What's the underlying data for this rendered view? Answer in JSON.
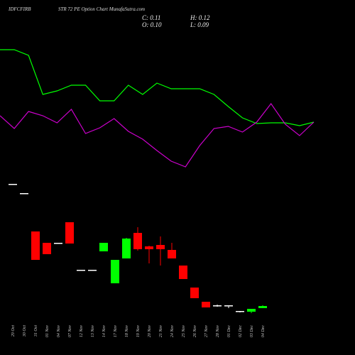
{
  "chart_data": [
    {
      "type": "line",
      "ylim": [
        0,
        2.5
      ],
      "series": [
        {
          "color": "#00ff00",
          "values": [
            1.8,
            1.8,
            1.72,
            1.17,
            1.22,
            1.3,
            1.3,
            1.08,
            1.08,
            1.3,
            1.17,
            1.33,
            1.25,
            1.25,
            1.25,
            1.17,
            1.0,
            0.84,
            0.76,
            0.77,
            0.77,
            0.73,
            0.78
          ]
        },
        {
          "color": "#cc00cc",
          "values": [
            0.87,
            0.69,
            0.93,
            0.87,
            0.77,
            0.96,
            0.62,
            0.7,
            0.83,
            0.65,
            0.54,
            0.38,
            0.23,
            0.15,
            0.45,
            0.69,
            0.72,
            0.64,
            0.78,
            1.04,
            0.75,
            0.59,
            0.78
          ]
        }
      ]
    },
    {
      "type": "candlestick",
      "title": "IDFCFIRB",
      "subtitle": "STR 72 PE Option Chart MunafaSutra.com",
      "stats": [
        "C: 0.11",
        "H: 0.12",
        "O: 0.10",
        "L: 0.09"
      ],
      "ylim": [
        0,
        1.95
      ],
      "up_color": "#00ff00",
      "down_color": "#ff0000",
      "flat_color": "#ffffff",
      "categories": [
        "29 Oct",
        "30 Oct",
        "31 Oct",
        "01 Nov",
        "04 Nov",
        "07 Nov",
        "12 Nov",
        "13 Nov",
        "14 Nov",
        "17 Nov",
        "18 Nov",
        "19 Nov",
        "20 Nov",
        "21 Nov",
        "24 Nov",
        "25 Nov",
        "26 Nov",
        "27 Nov",
        "28 Nov",
        "01 Dec",
        "02 Dec",
        "03 Dec",
        "04 Dec"
      ],
      "open": [
        1.83,
        1.7,
        1.16,
        1.0,
        1.0,
        1.29,
        0.62,
        0.62,
        0.88,
        0.43,
        0.78,
        1.14,
        0.95,
        0.97,
        0.9,
        0.68,
        0.37,
        0.17,
        0.12,
        0.12,
        0.04,
        0.03,
        0.1
      ],
      "high": [
        1.83,
        1.7,
        1.16,
        1.0,
        1.0,
        1.29,
        0.62,
        0.62,
        1.0,
        0.76,
        1.07,
        1.22,
        0.96,
        1.09,
        1.0,
        0.68,
        0.37,
        0.17,
        0.13,
        0.12,
        0.04,
        0.07,
        0.12
      ],
      "low": [
        1.83,
        1.7,
        0.76,
        0.84,
        1.0,
        0.99,
        0.62,
        0.62,
        0.88,
        0.43,
        0.78,
        0.89,
        0.71,
        0.68,
        0.78,
        0.49,
        0.22,
        0.09,
        0.1,
        0.08,
        0.02,
        0.01,
        0.09
      ],
      "close": [
        1.83,
        1.7,
        0.76,
        0.84,
        1.0,
        0.99,
        0.62,
        0.62,
        1.0,
        0.76,
        1.06,
        0.91,
        0.91,
        0.91,
        0.78,
        0.49,
        0.22,
        0.09,
        0.12,
        0.12,
        0.04,
        0.07,
        0.11
      ]
    }
  ]
}
